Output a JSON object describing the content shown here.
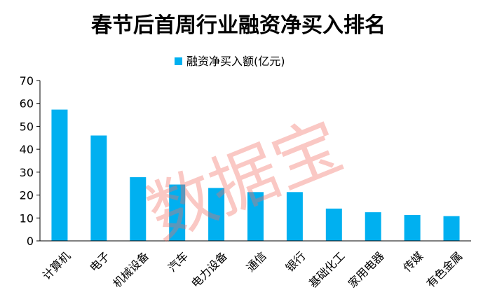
{
  "watermark": {
    "text": "数据宝"
  },
  "colors": {
    "bar": "#00b0f0",
    "axis": "#000000",
    "background": "#ffffff",
    "watermark": "#f16e64"
  },
  "chart_data": {
    "type": "bar",
    "title": "春节后首周行业融资净买入排名",
    "xlabel": "",
    "ylabel": "",
    "categories": [
      "计算机",
      "电子",
      "机械设备",
      "汽车",
      "电力设备",
      "通信",
      "银行",
      "基础化工",
      "家用电器",
      "传媒",
      "有色金属"
    ],
    "series": [
      {
        "name": "融资净买入额(亿元)",
        "values": [
          57.3,
          46.0,
          27.8,
          24.6,
          23.1,
          21.3,
          21.3,
          14.1,
          12.5,
          11.3,
          10.8
        ]
      }
    ],
    "ylim": [
      0,
      70
    ],
    "yticks": [
      0,
      10,
      20,
      30,
      40,
      50,
      60,
      70
    ],
    "grid": false,
    "legend_position": "top-center"
  }
}
